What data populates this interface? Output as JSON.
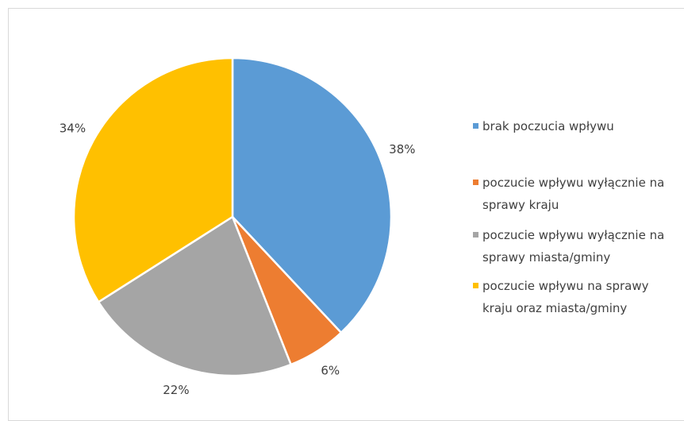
{
  "chart_data": {
    "type": "pie",
    "categories": [
      "brak poczucia wpływu",
      "poczucie wpływu wyłącznie na sprawy kraju",
      "poczucie wpływu wyłącznie na sprawy miasta/gminy",
      "poczucie wpływu na sprawy kraju oraz miasta/gminy"
    ],
    "values": [
      38,
      6,
      22,
      34
    ],
    "value_labels": [
      "38%",
      "6%",
      "22%",
      "34%"
    ],
    "colors": [
      "#5b9bd5",
      "#ed7d31",
      "#a5a5a5",
      "#ffc000"
    ],
    "legend": "right"
  }
}
